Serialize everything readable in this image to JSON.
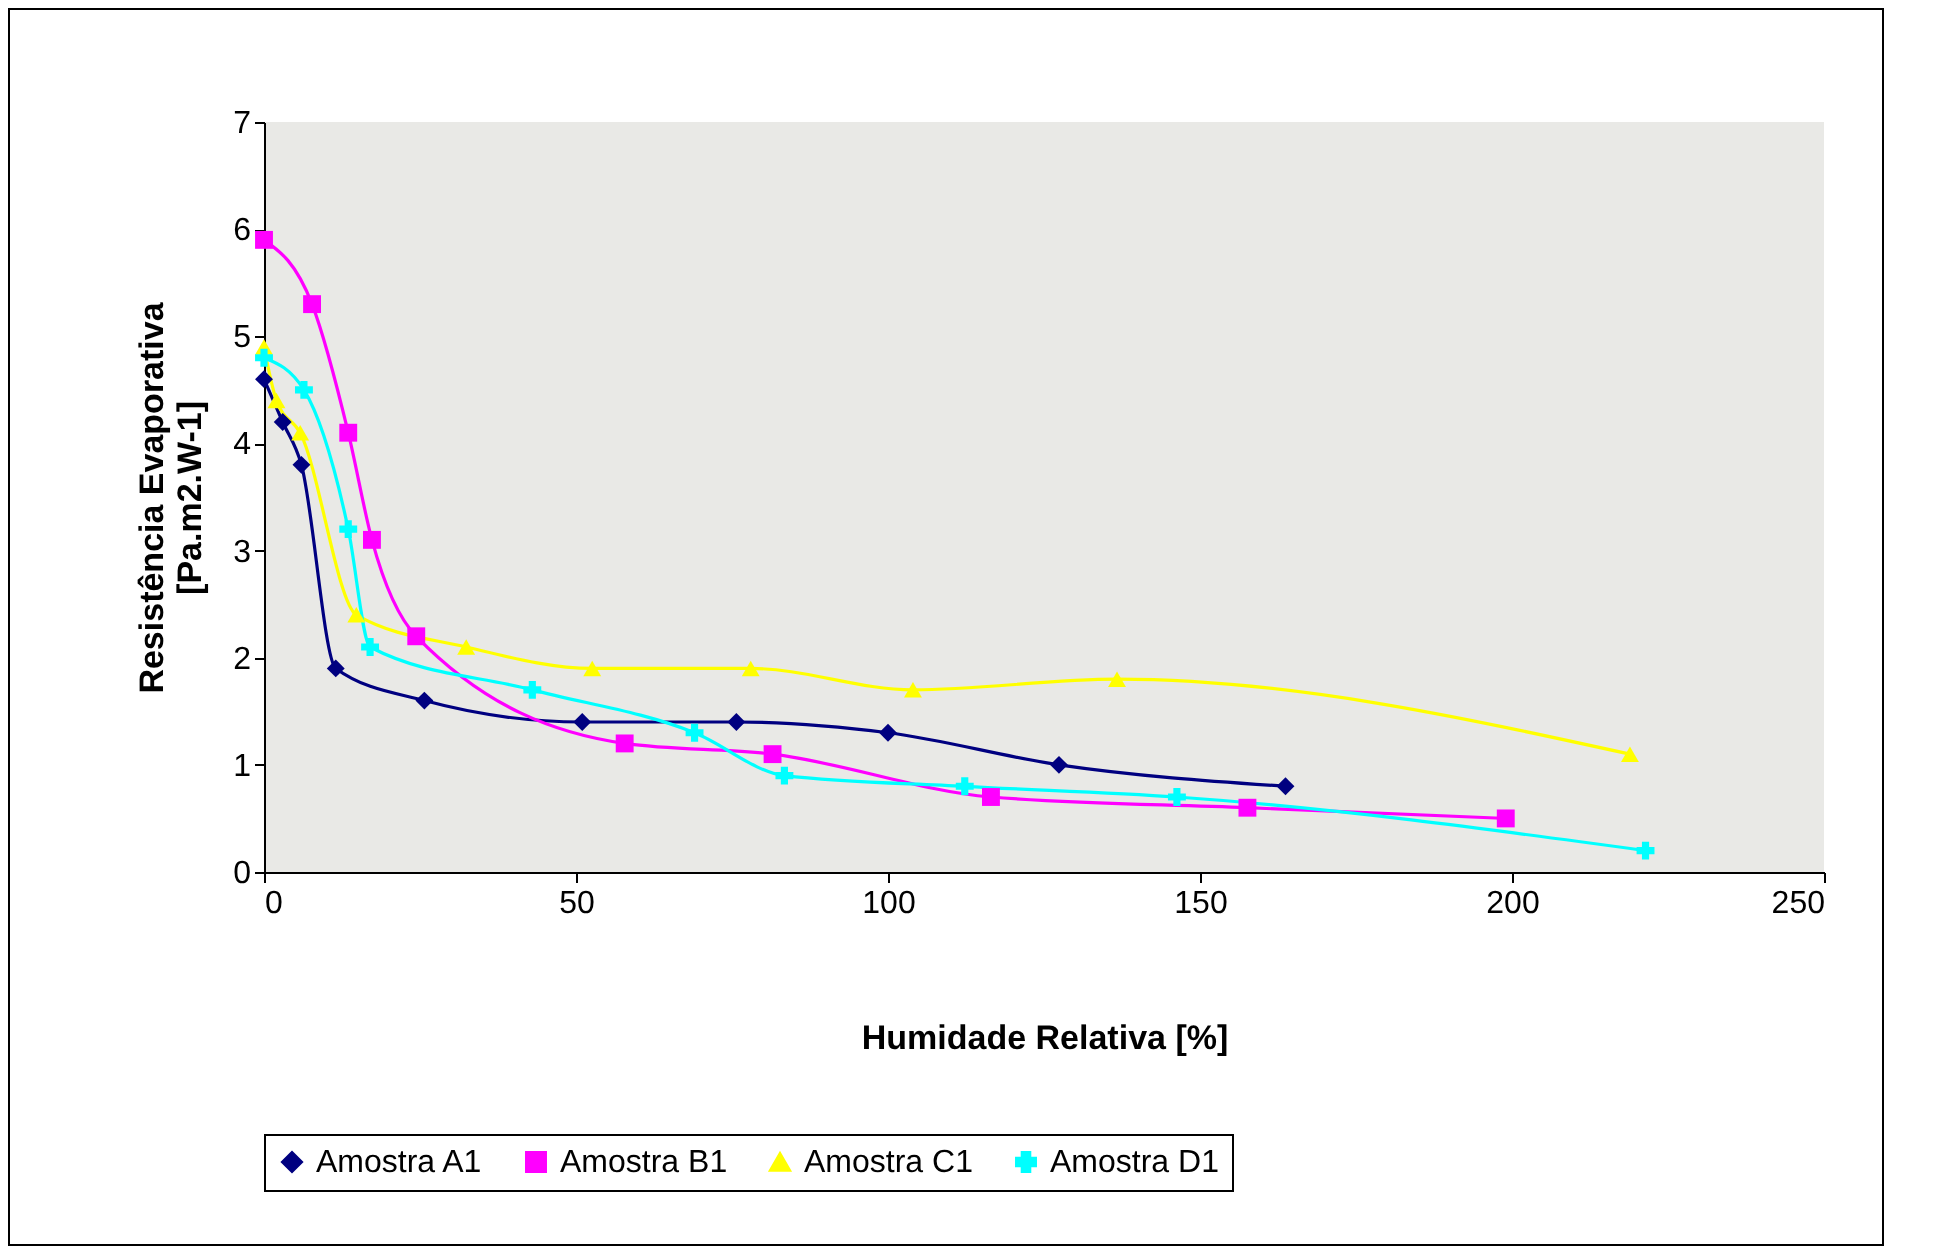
{
  "chart_data": {
    "type": "line",
    "xlabel": "Humidade Relativa [%]",
    "ylabel": "Resistência Evaporativa [Pa.m2.W-1]",
    "xlim": [
      0,
      250
    ],
    "xticks": [
      0,
      50,
      100,
      150,
      200,
      250
    ],
    "ylim": [
      0,
      7
    ],
    "yticks": [
      0,
      1,
      2,
      3,
      4,
      5,
      6,
      7
    ],
    "grid": false,
    "legend": "bottom",
    "line_style": "solid",
    "series": [
      {
        "name": "Amostra A1",
        "color": "#000080",
        "marker": "diamond",
        "x": [
          0,
          3,
          6,
          11.5,
          25.7,
          51,
          75.7,
          100,
          127.4,
          163.7
        ],
        "values": [
          4.6,
          4.2,
          3.8,
          1.9,
          1.6,
          1.4,
          1.4,
          1.3,
          1.0,
          0.8
        ]
      },
      {
        "name": "Amostra B1",
        "color": "#ff00ff",
        "marker": "square",
        "x": [
          0,
          7.7,
          13.5,
          17.3,
          24.4,
          57.8,
          81.5,
          116.5,
          157.6,
          199
        ],
        "values": [
          5.9,
          5.3,
          4.1,
          3.1,
          2.2,
          1.2,
          1.1,
          0.7,
          0.6,
          0.5
        ]
      },
      {
        "name": "Amostra C1",
        "color": "#ffff00",
        "marker": "triangle",
        "x": [
          0,
          2,
          5.8,
          14.8,
          32.4,
          52.6,
          78,
          104,
          136.7,
          218.9
        ],
        "values": [
          4.9,
          4.4,
          4.1,
          2.4,
          2.1,
          1.9,
          1.9,
          1.7,
          1.8,
          1.1
        ]
      },
      {
        "name": "Amostra D1",
        "color": "#00ffff",
        "marker": "cross",
        "x": [
          0,
          6.4,
          13.5,
          17,
          43,
          69,
          83.4,
          112.3,
          146.3,
          221.4
        ],
        "values": [
          4.8,
          4.5,
          3.2,
          2.1,
          1.7,
          1.3,
          0.9,
          0.8,
          0.7,
          0.2
        ]
      }
    ]
  }
}
